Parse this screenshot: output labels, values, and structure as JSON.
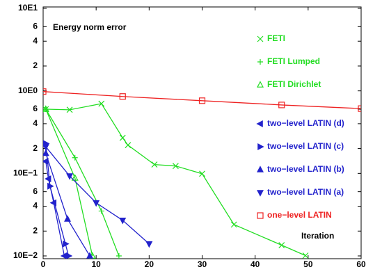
{
  "chart_data": {
    "type": "line",
    "annotation": "Energy norm error",
    "x_label": "Iteration",
    "log_y": true,
    "xlim": [
      0,
      60
    ],
    "xticks": [
      0,
      10,
      20,
      30,
      40,
      50,
      60
    ],
    "ylim": [
      0.01,
      10
    ],
    "yticks": [
      {
        "value": 10,
        "label": "10E1"
      },
      6,
      4,
      2,
      {
        "value": 1,
        "label": "10E0"
      },
      {
        "value": 0.6,
        "label": "6"
      },
      {
        "value": 0.4,
        "label": "4"
      },
      {
        "value": 0.2,
        "label": "2"
      },
      {
        "value": 0.1,
        "label": "10E−1"
      },
      {
        "value": 0.06,
        "label": "6"
      },
      {
        "value": 0.04,
        "label": "4"
      },
      {
        "value": 0.02,
        "label": "2"
      },
      {
        "value": 0.01,
        "label": "10E−2"
      }
    ],
    "series": [
      {
        "name": "FETI",
        "color": "#22dd22",
        "marker": "x",
        "x": [
          0.5,
          5,
          11,
          15,
          16,
          21,
          25,
          30,
          36,
          45,
          49.5
        ],
        "values": [
          0.6,
          0.59,
          0.7,
          0.27,
          0.22,
          0.128,
          0.123,
          0.099,
          0.024,
          0.0135,
          0.0101
        ]
      },
      {
        "name": "FETI Lumped",
        "color": "#22dd22",
        "marker": "plus",
        "x": [
          0.5,
          6,
          11,
          14.3
        ],
        "values": [
          0.6,
          0.155,
          0.035,
          0.01
        ]
      },
      {
        "name": "FETI Dirichlet",
        "color": "#22dd22",
        "marker": "triangle-up-open",
        "x": [
          0.5,
          6,
          9.3
        ],
        "values": [
          0.6,
          0.088,
          0.01
        ]
      },
      {
        "name": "two−level LATIN (d)",
        "color": "#2222cc",
        "marker": "triangle-left",
        "x": [
          0.5,
          1,
          2,
          4
        ],
        "values": [
          0.14,
          0.086,
          0.044,
          0.01
        ]
      },
      {
        "name": "two−level LATIN (c)",
        "color": "#2222cc",
        "marker": "triangle-right",
        "x": [
          0.5,
          1.3,
          4.2,
          4.8
        ],
        "values": [
          0.23,
          0.07,
          0.014,
          0.01
        ]
      },
      {
        "name": "two−level LATIN (b)",
        "color": "#2222cc",
        "marker": "triangle-up",
        "x": [
          0.5,
          4.6,
          8.8
        ],
        "values": [
          0.175,
          0.028,
          0.01
        ]
      },
      {
        "name": "two−level LATIN (a)",
        "color": "#2222cc",
        "marker": "triangle-down",
        "x": [
          0.5,
          5,
          10,
          15,
          20
        ],
        "values": [
          0.21,
          0.093,
          0.044,
          0.027,
          0.014
        ]
      },
      {
        "name": "one−level LATIN",
        "color": "#ee2222",
        "marker": "square-open",
        "x": [
          0,
          15,
          30,
          45,
          60
        ],
        "values": [
          0.98,
          0.855,
          0.76,
          0.675,
          0.61
        ]
      }
    ]
  }
}
